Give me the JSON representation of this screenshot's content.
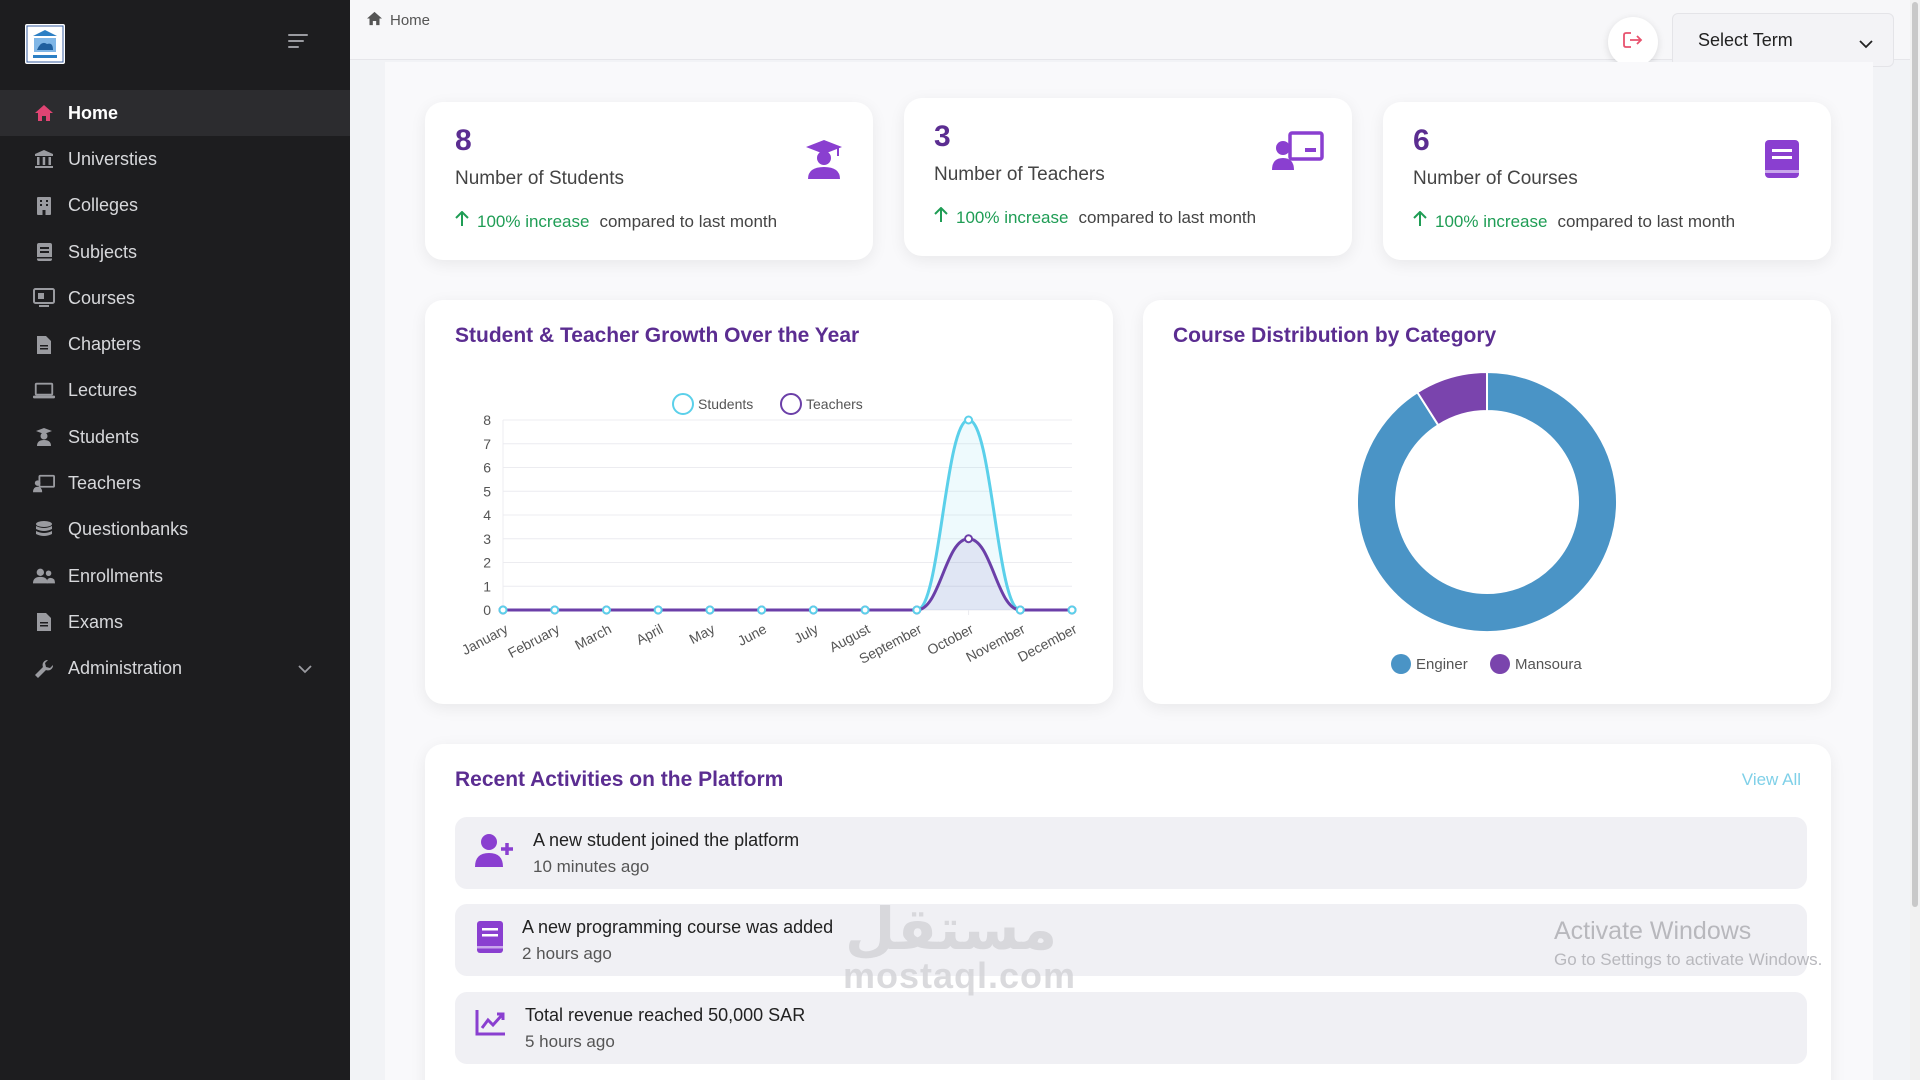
{
  "sidebar": {
    "items": [
      {
        "label": "Home",
        "icon": "home-icon"
      },
      {
        "label": "Universties",
        "icon": "university-icon"
      },
      {
        "label": "Colleges",
        "icon": "building-icon"
      },
      {
        "label": "Subjects",
        "icon": "book-icon"
      },
      {
        "label": "Courses",
        "icon": "monitor-icon"
      },
      {
        "label": "Chapters",
        "icon": "file-icon"
      },
      {
        "label": "Lectures",
        "icon": "laptop-icon"
      },
      {
        "label": "Students",
        "icon": "student-icon"
      },
      {
        "label": "Teachers",
        "icon": "teacher-icon"
      },
      {
        "label": "Questionbanks",
        "icon": "database-icon"
      },
      {
        "label": "Enrollments",
        "icon": "users-icon"
      },
      {
        "label": "Exams",
        "icon": "file-icon"
      },
      {
        "label": "Administration",
        "icon": "wrench-icon"
      }
    ]
  },
  "topbar": {
    "breadcrumb": "Home",
    "term_select": "Select Term"
  },
  "stats": [
    {
      "value": "8",
      "label": "Number of Students",
      "increase": "100% increase",
      "compare": "compared to last month"
    },
    {
      "value": "3",
      "label": "Number of Teachers",
      "increase": "100% increase",
      "compare": "compared to last month"
    },
    {
      "value": "6",
      "label": "Number of Courses",
      "increase": "100% increase",
      "compare": "compared to last month"
    }
  ],
  "growth_title": "Student & Teacher Growth Over the Year",
  "dist_title": "Course Distribution by Category",
  "activities": {
    "title": "Recent Activities on the Platform",
    "view_all": "View All",
    "items": [
      {
        "text": "A new student joined the platform",
        "time": "10 minutes ago"
      },
      {
        "text": "A new programming course was added",
        "time": "2 hours ago"
      },
      {
        "text": "Total revenue reached 50,000 SAR",
        "time": "5 hours ago"
      }
    ]
  },
  "watermark": {
    "activate_title": "Activate Windows",
    "activate_sub": "Go to Settings to activate Windows.",
    "site": "mostaql.com",
    "site_ar": "مستقل"
  },
  "colors": {
    "brand_purple": "#5b2d91",
    "students_line": "#5bd0ea",
    "teachers_line": "#6b3fa8",
    "donut_main": "#4a94c6",
    "donut_minor": "#7a44ad",
    "increase_green": "#1f9d55"
  },
  "chart_data": [
    {
      "type": "line",
      "categories": [
        "January",
        "February",
        "March",
        "April",
        "May",
        "June",
        "July",
        "August",
        "September",
        "October",
        "November",
        "December"
      ],
      "series": [
        {
          "name": "Students",
          "values": [
            0,
            0,
            0,
            0,
            0,
            0,
            0,
            0,
            0,
            8,
            0,
            0
          ]
        },
        {
          "name": "Teachers",
          "values": [
            0,
            0,
            0,
            0,
            0,
            0,
            0,
            0,
            0,
            3,
            0,
            0
          ]
        }
      ],
      "ylim": [
        0,
        8
      ],
      "yticks": [
        0,
        1,
        2,
        3,
        4,
        5,
        6,
        7,
        8
      ],
      "legend": "top",
      "grid": true
    },
    {
      "type": "pie",
      "labels": [
        "Enginer",
        "Mansoura"
      ],
      "values": [
        91,
        9
      ],
      "legend": "bottom"
    }
  ]
}
